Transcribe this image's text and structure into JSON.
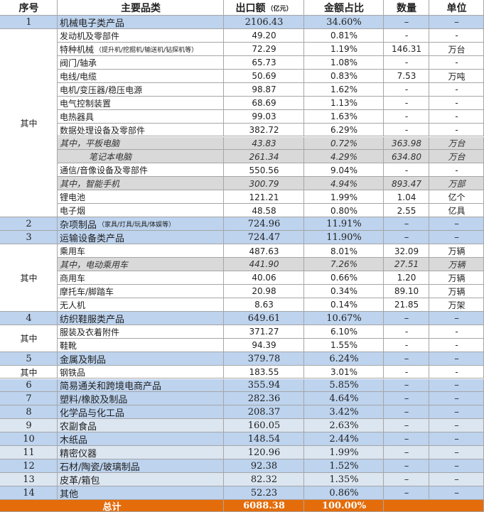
{
  "table": {
    "header": [
      "序号",
      "主要品类",
      {
        "text": "出口额",
        "note": "（亿元）"
      },
      "金额占比",
      "数量",
      "单位"
    ],
    "rows": [
      {
        "kind": "main",
        "cells": [
          "1",
          "机械电子类产品",
          "2106.43",
          "34.60%",
          "–",
          "–"
        ]
      },
      {
        "kind": "group",
        "label": "其中",
        "rows": [
          {
            "cells": [
              "发动机及零部件",
              "49.20",
              "0.81%",
              "-",
              "-"
            ]
          },
          {
            "cells": [
              "特种机械",
              "72.29",
              "1.19%",
              "146.31",
              "万台"
            ],
            "note": "（提升机/挖掘机/输送机/钻探机等）"
          },
          {
            "cells": [
              "阀门/轴承",
              "65.73",
              "1.08%",
              "-",
              "-"
            ]
          },
          {
            "cells": [
              "电线/电缆",
              "50.69",
              "0.83%",
              "7.53",
              "万吨"
            ]
          },
          {
            "cells": [
              "电机/变压器/稳压电源",
              "98.87",
              "1.62%",
              "-",
              "-"
            ]
          },
          {
            "cells": [
              "电气控制装置",
              "68.69",
              "1.13%",
              "-",
              "-"
            ]
          },
          {
            "cells": [
              "电热器具",
              "99.03",
              "1.63%",
              "-",
              "-"
            ]
          },
          {
            "cells": [
              "数据处理设备及零部件",
              "382.72",
              "6.29%",
              "-",
              "-"
            ]
          },
          {
            "cells": [
              "其中，平板电脑",
              "43.83",
              "0.72%",
              "363.98",
              "万台"
            ],
            "highlight": true
          },
          {
            "cells": [
              "笔记本电脑",
              "261.34",
              "4.29%",
              "634.80",
              "万台"
            ],
            "highlight": true,
            "indent": true
          },
          {
            "cells": [
              "通信/音像设备及零部件",
              "550.56",
              "9.04%",
              "-",
              "-"
            ]
          },
          {
            "cells": [
              "其中，智能手机",
              "300.79",
              "4.94%",
              "893.47",
              "万部"
            ],
            "highlight": true
          },
          {
            "cells": [
              "锂电池",
              "121.21",
              "1.99%",
              "1.04",
              "亿个"
            ]
          },
          {
            "cells": [
              "电子烟",
              "48.58",
              "0.80%",
              "2.55",
              "亿具"
            ]
          }
        ]
      },
      {
        "kind": "main",
        "cells": [
          "2",
          "杂项制品",
          "724.96",
          "11.91%",
          "–",
          "–"
        ],
        "note": "（家具/灯具/玩具/体娱等）"
      },
      {
        "kind": "main",
        "cells": [
          "3",
          "运输设备类产品",
          "724.47",
          "11.90%",
          "–",
          "–"
        ]
      },
      {
        "kind": "group",
        "label": "其中",
        "rows": [
          {
            "cells": [
              "乘用车",
              "487.63",
              "8.01%",
              "32.09",
              "万辆"
            ]
          },
          {
            "cells": [
              "其中，电动乘用车",
              "441.90",
              "7.26%",
              "27.51",
              "万辆"
            ],
            "highlight": true
          },
          {
            "cells": [
              "商用车",
              "40.06",
              "0.66%",
              "1.20",
              "万辆"
            ]
          },
          {
            "cells": [
              "摩托车/脚踏车",
              "20.98",
              "0.34%",
              "89.10",
              "万辆"
            ]
          },
          {
            "cells": [
              "无人机",
              "8.63",
              "0.14%",
              "21.85",
              "万架"
            ]
          }
        ]
      },
      {
        "kind": "main",
        "cells": [
          "4",
          "纺织鞋服类产品",
          "649.61",
          "10.67%",
          "–",
          "–"
        ]
      },
      {
        "kind": "group",
        "label": "其中",
        "rows": [
          {
            "cells": [
              "服装及衣着附件",
              "371.27",
              "6.10%",
              "-",
              "-"
            ]
          },
          {
            "cells": [
              "鞋靴",
              "94.39",
              "1.55%",
              "-",
              "-"
            ]
          }
        ]
      },
      {
        "kind": "main",
        "cells": [
          "5",
          "金属及制品",
          "379.78",
          "6.24%",
          "–",
          "–"
        ]
      },
      {
        "kind": "group",
        "label": "其中",
        "rows": [
          {
            "cells": [
              "钢铁品",
              "183.55",
              "3.01%",
              "-",
              "-"
            ]
          }
        ]
      },
      {
        "kind": "main",
        "cells": [
          "6",
          "简易通关和跨境电商产品",
          "355.94",
          "5.85%",
          "–",
          "–"
        ]
      },
      {
        "kind": "main",
        "cells": [
          "7",
          "塑料/橡胶及制品",
          "282.36",
          "4.64%",
          "–",
          "–"
        ]
      },
      {
        "kind": "main",
        "cells": [
          "8",
          "化学品与化工品",
          "208.37",
          "3.42%",
          "–",
          "–"
        ]
      },
      {
        "kind": "main",
        "cells": [
          "9",
          "农副食品",
          "160.05",
          "2.63%",
          "–",
          "–"
        ],
        "light": true
      },
      {
        "kind": "main",
        "cells": [
          "10",
          "木纸品",
          "148.54",
          "2.44%",
          "–",
          "–"
        ]
      },
      {
        "kind": "main",
        "cells": [
          "11",
          "精密仪器",
          "120.96",
          "1.99%",
          "–",
          "–"
        ],
        "light": true
      },
      {
        "kind": "main",
        "cells": [
          "12",
          "石材/陶瓷/玻璃制品",
          "92.38",
          "1.52%",
          "–",
          "–"
        ]
      },
      {
        "kind": "main",
        "cells": [
          "13",
          "皮革/箱包",
          "82.32",
          "1.35%",
          "–",
          "–"
        ],
        "light": true
      },
      {
        "kind": "main",
        "cells": [
          "14",
          "其他",
          "52.23",
          "0.86%",
          "–",
          "–"
        ]
      },
      {
        "kind": "total",
        "cells": [
          "总计",
          "6088.38",
          "100.00%"
        ]
      }
    ]
  }
}
